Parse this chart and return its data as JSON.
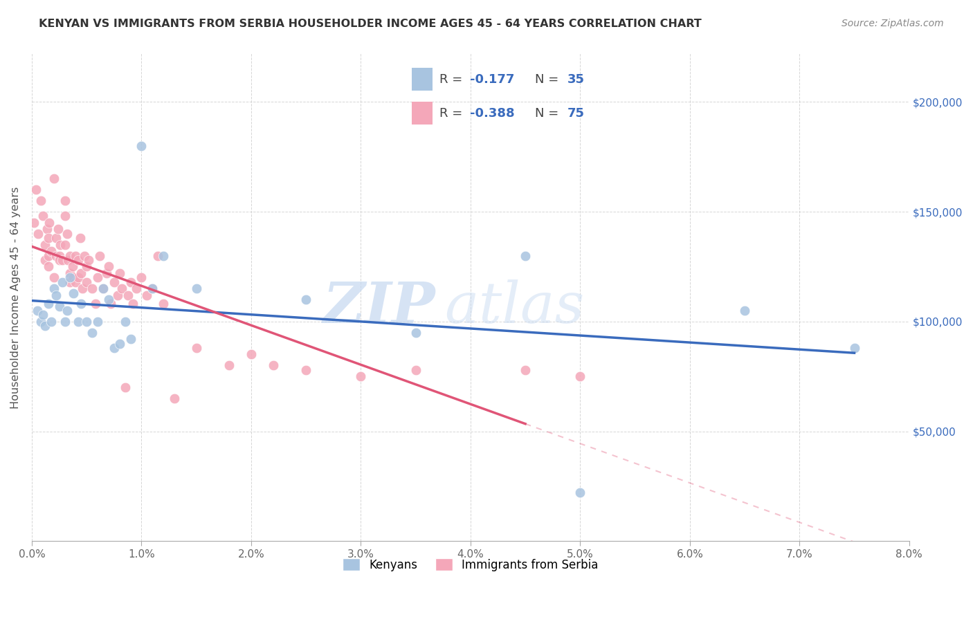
{
  "title": "KENYAN VS IMMIGRANTS FROM SERBIA HOUSEHOLDER INCOME AGES 45 - 64 YEARS CORRELATION CHART",
  "source": "Source: ZipAtlas.com",
  "xlabel_vals": [
    0.0,
    1.0,
    2.0,
    3.0,
    4.0,
    5.0,
    6.0,
    7.0,
    8.0
  ],
  "ylabel": "Householder Income Ages 45 - 64 years",
  "ylabel_ticks": [
    0,
    50000,
    100000,
    150000,
    200000
  ],
  "ylabel_labels": [
    "",
    "$50,000",
    "$100,000",
    "$150,000",
    "$200,000"
  ],
  "xlim": [
    0.0,
    8.0
  ],
  "ylim": [
    0,
    222000
  ],
  "kenyan_R": -0.177,
  "kenyan_N": 35,
  "serbia_R": -0.388,
  "serbia_N": 75,
  "kenyan_color": "#a8c4e0",
  "serbia_color": "#f4a7b9",
  "kenyan_line_color": "#3a6bbd",
  "serbia_line_color": "#e05577",
  "watermark_zip": "ZIP",
  "watermark_atlas": "atlas",
  "kenyan_x": [
    0.05,
    0.08,
    0.1,
    0.12,
    0.15,
    0.18,
    0.2,
    0.22,
    0.25,
    0.28,
    0.3,
    0.32,
    0.35,
    0.38,
    0.42,
    0.45,
    0.5,
    0.55,
    0.6,
    0.65,
    0.7,
    0.75,
    0.8,
    0.85,
    0.9,
    1.0,
    1.1,
    1.2,
    1.5,
    2.5,
    3.5,
    4.5,
    5.0,
    6.5,
    7.5
  ],
  "kenyan_y": [
    105000,
    100000,
    103000,
    98000,
    108000,
    100000,
    115000,
    112000,
    107000,
    118000,
    100000,
    105000,
    120000,
    113000,
    100000,
    108000,
    100000,
    95000,
    100000,
    115000,
    110000,
    88000,
    90000,
    100000,
    92000,
    180000,
    115000,
    130000,
    115000,
    110000,
    95000,
    130000,
    22000,
    105000,
    88000
  ],
  "serbia_x": [
    0.02,
    0.04,
    0.06,
    0.08,
    0.1,
    0.12,
    0.12,
    0.14,
    0.15,
    0.15,
    0.15,
    0.16,
    0.18,
    0.2,
    0.2,
    0.22,
    0.22,
    0.24,
    0.25,
    0.25,
    0.26,
    0.28,
    0.3,
    0.3,
    0.3,
    0.32,
    0.33,
    0.35,
    0.35,
    0.35,
    0.37,
    0.38,
    0.4,
    0.4,
    0.42,
    0.42,
    0.44,
    0.45,
    0.46,
    0.48,
    0.5,
    0.5,
    0.52,
    0.55,
    0.58,
    0.6,
    0.62,
    0.65,
    0.68,
    0.7,
    0.72,
    0.75,
    0.78,
    0.8,
    0.82,
    0.85,
    0.88,
    0.9,
    0.92,
    0.95,
    1.0,
    1.05,
    1.1,
    1.15,
    1.2,
    1.3,
    1.5,
    1.8,
    2.0,
    2.2,
    2.5,
    3.0,
    3.5,
    4.5,
    5.0
  ],
  "serbia_y": [
    145000,
    160000,
    140000,
    155000,
    148000,
    135000,
    128000,
    142000,
    138000,
    130000,
    125000,
    145000,
    132000,
    165000,
    120000,
    138000,
    130000,
    142000,
    130000,
    128000,
    135000,
    128000,
    155000,
    148000,
    135000,
    140000,
    128000,
    130000,
    122000,
    118000,
    125000,
    120000,
    130000,
    118000,
    128000,
    120000,
    138000,
    122000,
    115000,
    130000,
    118000,
    125000,
    128000,
    115000,
    108000,
    120000,
    130000,
    115000,
    122000,
    125000,
    108000,
    118000,
    112000,
    122000,
    115000,
    70000,
    112000,
    118000,
    108000,
    115000,
    120000,
    112000,
    115000,
    130000,
    108000,
    65000,
    88000,
    80000,
    85000,
    80000,
    78000,
    75000,
    78000,
    78000,
    75000
  ],
  "serbia_solid_end": 4.5,
  "kenyan_solid_end": 7.5
}
